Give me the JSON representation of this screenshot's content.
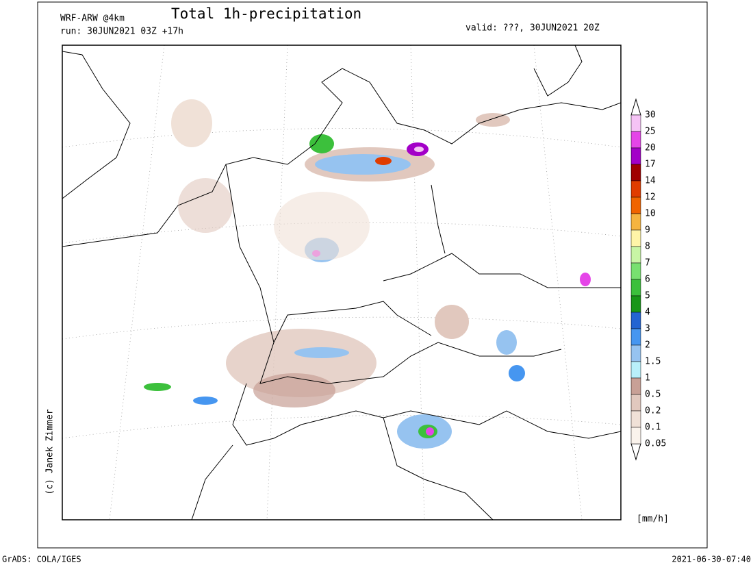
{
  "header": {
    "model": "WRF-ARW @4km",
    "title": "Total 1h-precipitation",
    "run": "run: 30JUN2021 03Z +17h",
    "valid": "valid: ???, 30JUN2021 20Z"
  },
  "copyright": "(c) Janek Zimmer",
  "colorbar": {
    "unit": "[mm/h]",
    "labels": [
      "30",
      "25",
      "20",
      "17",
      "14",
      "12",
      "10",
      "9",
      "8",
      "7",
      "6",
      "5",
      "4",
      "3",
      "2",
      "1.5",
      "1",
      "0.5",
      "0.2",
      "0.1",
      "0.05"
    ],
    "colors": [
      "#f5c3f5",
      "#e545e8",
      "#a300c8",
      "#a00000",
      "#e03c00",
      "#f06400",
      "#f5b440",
      "#fff5a8",
      "#c8f5a5",
      "#78e070",
      "#3cc03c",
      "#189618",
      "#2364d2",
      "#4696f0",
      "#96c3f0",
      "#b9f0fa",
      "#c8a096",
      "#e1c8be",
      "#f0e1d7",
      "#faf3ec"
    ]
  },
  "footer": {
    "left": "GrADS: COLA/IGES",
    "right": "2021-06-30-07:40"
  }
}
